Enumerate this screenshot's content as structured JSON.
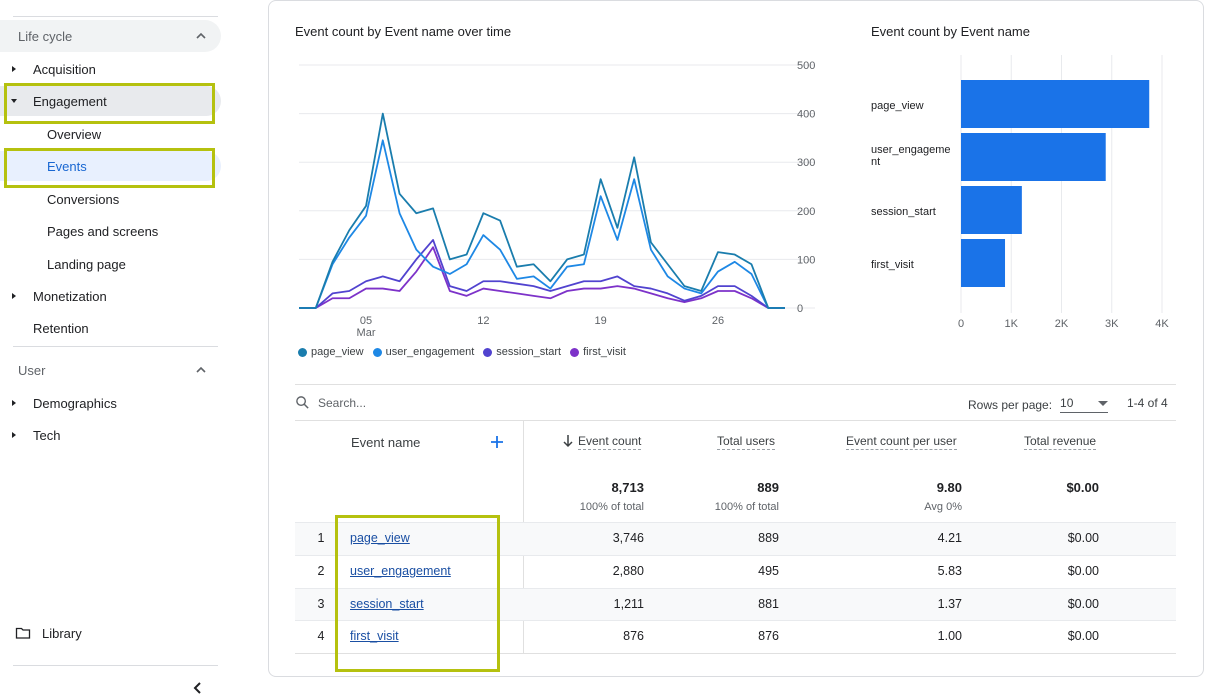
{
  "sidebar": {
    "lifecycle_label": "Life cycle",
    "items": [
      {
        "label": "Acquisition"
      },
      {
        "label": "Engagement"
      },
      {
        "label": "Overview"
      },
      {
        "label": "Events"
      },
      {
        "label": "Conversions"
      },
      {
        "label": "Pages and screens"
      },
      {
        "label": "Landing page"
      },
      {
        "label": "Monetization"
      },
      {
        "label": "Retention"
      }
    ],
    "user_label": "User",
    "user_items": [
      {
        "label": "Demographics"
      },
      {
        "label": "Tech"
      }
    ],
    "library_label": "Library",
    "highlight_color": "#b5c10f"
  },
  "line_chart": {
    "title": "Event count by Event name over time"
  },
  "bar_chart": {
    "title": "Event count by Event name"
  },
  "chart_data": [
    {
      "type": "line",
      "x_ticks": [
        "05",
        "12",
        "19",
        "26"
      ],
      "x_month_label": "Mar",
      "y_ticks": [
        0,
        100,
        200,
        300,
        400,
        500
      ],
      "ylim": [
        0,
        500
      ],
      "x": [
        1,
        2,
        3,
        4,
        5,
        6,
        7,
        8,
        9,
        10,
        11,
        12,
        13,
        14,
        15,
        16,
        17,
        18,
        19,
        20,
        21,
        22,
        23,
        24,
        25,
        26,
        27,
        28,
        29,
        30
      ],
      "series": [
        {
          "name": "page_view",
          "color": "#1a7dad",
          "values": [
            0,
            0,
            95,
            160,
            210,
            400,
            235,
            195,
            205,
            100,
            110,
            195,
            180,
            85,
            90,
            55,
            100,
            110,
            265,
            165,
            310,
            135,
            90,
            45,
            35,
            115,
            110,
            90,
            0,
            0
          ]
        },
        {
          "name": "user_engagement",
          "color": "#1e88e5",
          "values": [
            0,
            0,
            90,
            145,
            190,
            345,
            195,
            120,
            85,
            70,
            90,
            150,
            120,
            60,
            65,
            40,
            85,
            90,
            230,
            140,
            265,
            120,
            65,
            40,
            30,
            75,
            95,
            70,
            0,
            0
          ]
        },
        {
          "name": "session_start",
          "color": "#5143cf",
          "values": [
            0,
            0,
            30,
            35,
            55,
            65,
            55,
            100,
            140,
            45,
            35,
            55,
            55,
            50,
            45,
            35,
            45,
            55,
            55,
            65,
            45,
            40,
            30,
            15,
            25,
            45,
            45,
            25,
            0,
            0
          ]
        },
        {
          "name": "first_visit",
          "color": "#7d32c9",
          "values": [
            0,
            0,
            20,
            20,
            40,
            40,
            35,
            75,
            125,
            35,
            25,
            40,
            35,
            30,
            25,
            20,
            35,
            40,
            40,
            45,
            40,
            30,
            20,
            12,
            20,
            35,
            35,
            20,
            0,
            0
          ]
        }
      ],
      "legend": "bottom",
      "grid": true
    },
    {
      "type": "bar",
      "orientation": "horizontal",
      "categories": [
        "page_view",
        "user_engagement",
        "session_start",
        "first_visit"
      ],
      "category_display": [
        "page_view",
        "user_engageme\nnt",
        "session_start",
        "first_visit"
      ],
      "values": [
        3746,
        2880,
        1211,
        876
      ],
      "x_ticks": [
        "0",
        "1K",
        "2K",
        "3K",
        "4K"
      ],
      "xlim": [
        0,
        4000
      ],
      "color": "#1a73e8",
      "grid": true
    }
  ],
  "table": {
    "search_placeholder": "Search...",
    "rows_per_page_label": "Rows per page:",
    "rows_per_page_value": "10",
    "pager_text": "1-4 of 4",
    "columns": {
      "event_name": "Event name",
      "event_count": "Event count",
      "total_users": "Total users",
      "per_user": "Event count per user",
      "revenue": "Total revenue"
    },
    "totals": {
      "event_count": "8,713",
      "event_count_sub": "100% of total",
      "total_users": "889",
      "total_users_sub": "100% of total",
      "per_user": "9.80",
      "per_user_sub": "Avg 0%",
      "revenue": "$0.00"
    },
    "rows": [
      {
        "idx": "1",
        "name": "page_view",
        "count": "3,746",
        "users": "889",
        "per_user": "4.21",
        "revenue": "$0.00"
      },
      {
        "idx": "2",
        "name": "user_engagement",
        "count": "2,880",
        "users": "495",
        "per_user": "5.83",
        "revenue": "$0.00"
      },
      {
        "idx": "3",
        "name": "session_start",
        "count": "1,211",
        "users": "881",
        "per_user": "1.37",
        "revenue": "$0.00"
      },
      {
        "idx": "4",
        "name": "first_visit",
        "count": "876",
        "users": "876",
        "per_user": "1.00",
        "revenue": "$0.00"
      }
    ]
  }
}
